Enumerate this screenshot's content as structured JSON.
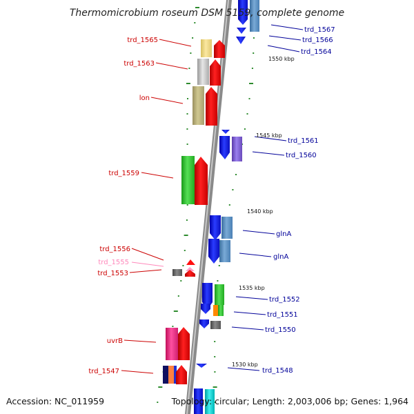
{
  "title": "Thermomicrobium roseum DSM 5159, complete genome",
  "accession": "Accession: NC_011959",
  "summary": "Topology: circular; Length: 2,003,006 bp; Genes: 1,964",
  "colors": {
    "left_label": "#cc0000",
    "left_label_faint": "#ff88bb",
    "right_label": "#000099",
    "backbone": "#8a8a8a",
    "tick": "#2e8b2e"
  },
  "position_labels": [
    "1550 kbp",
    "1545 kbp",
    "1540 kbp",
    "1535 kbp",
    "1530 kbp"
  ],
  "left_genes": [
    "trd_1565",
    "trd_1563",
    "lon",
    "trd_1559",
    "trd_1556",
    "trd_1555",
    "trd_1553",
    "uvrB",
    "trd_1547"
  ],
  "right_genes": [
    "trd_1567",
    "trd_1566",
    "trd_1564",
    "trd_1561",
    "trd_1560",
    "glnA",
    "glnA",
    "trd_1552",
    "trd_1551",
    "trd_1550",
    "trd_1548"
  ]
}
